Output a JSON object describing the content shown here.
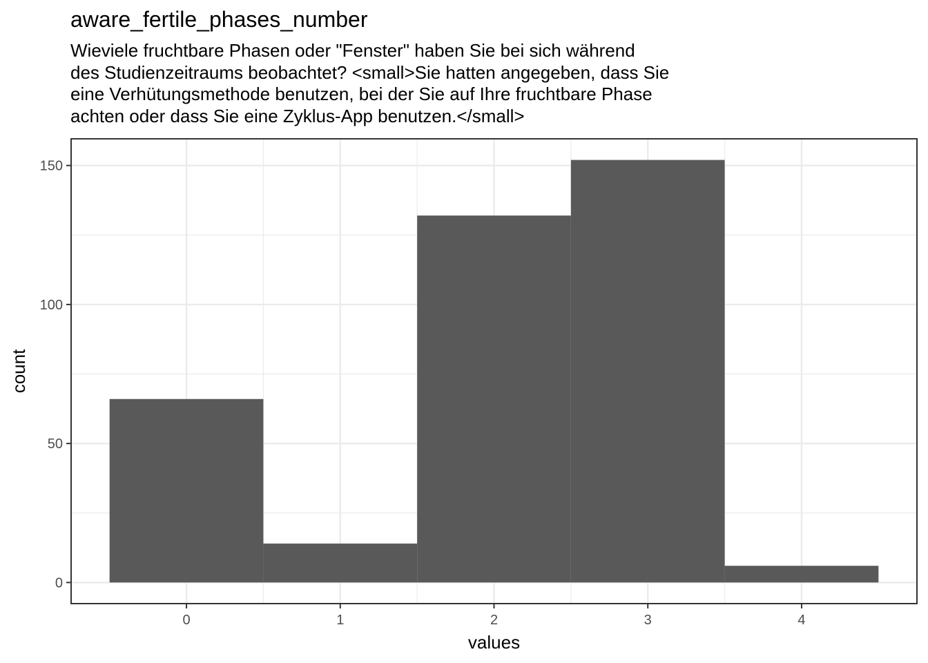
{
  "chart_data": {
    "type": "bar",
    "title": "aware_fertile_phases_number",
    "subtitle_lines": [
      "Wieviele fruchtbare Phasen oder \"Fenster\" haben Sie bei sich während",
      "des Studienzeitraums beobachtet? <small>Sie hatten angegeben, dass Sie",
      "eine Verhütungsmethode benutzen, bei der Sie auf Ihre fruchtbare Phase",
      "achten oder dass Sie eine Zyklus-App benutzen.</small>"
    ],
    "xlabel": "values",
    "ylabel": "count",
    "categories": [
      "0",
      "1",
      "2",
      "3",
      "4"
    ],
    "x": [
      0,
      1,
      2,
      3,
      4
    ],
    "values": [
      66,
      14,
      132,
      152,
      6
    ],
    "xlim": [
      -0.75,
      4.75
    ],
    "ylim": [
      -7.6,
      159.6
    ],
    "x_ticks": [
      0,
      1,
      2,
      3,
      4
    ],
    "y_ticks": [
      0,
      50,
      100,
      150
    ],
    "y_minor_ticks": [
      25,
      75,
      125
    ],
    "x_minor_ticks": [
      0.5,
      1.5,
      2.5,
      3.5
    ],
    "grid": true,
    "bar_color": "#595959",
    "grid_color": "#ebebeb",
    "panel_border_color": "#333333"
  }
}
